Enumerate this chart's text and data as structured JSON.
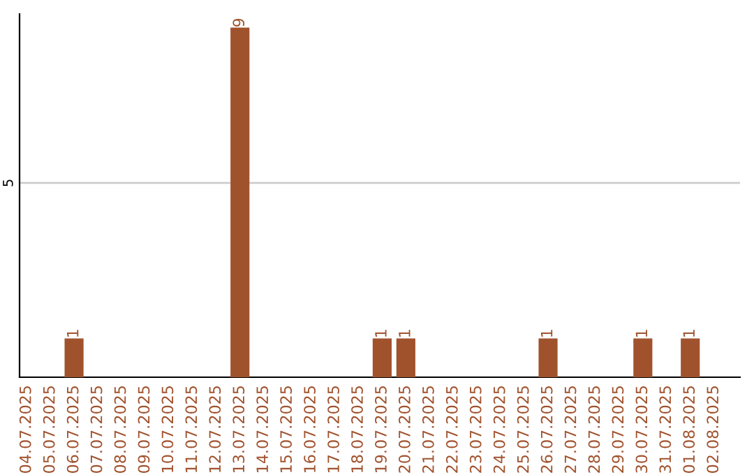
{
  "chart_data": {
    "type": "bar",
    "categories": [
      "04.07.2025",
      "05.07.2025",
      "06.07.2025",
      "07.07.2025",
      "08.07.2025",
      "09.07.2025",
      "10.07.2025",
      "11.07.2025",
      "12.07.2025",
      "13.07.2025",
      "14.07.2025",
      "15.07.2025",
      "16.07.2025",
      "17.07.2025",
      "18.07.2025",
      "19.07.2025",
      "20.07.2025",
      "21.07.2025",
      "22.07.2025",
      "23.07.2025",
      "24.07.2025",
      "25.07.2025",
      "26.07.2025",
      "27.07.2025",
      "28.07.2025",
      "29.07.2025",
      "30.07.2025",
      "31.07.2025",
      "01.08.2025",
      "02.08.2025"
    ],
    "values": [
      0,
      0,
      1,
      0,
      0,
      0,
      0,
      0,
      0,
      9,
      0,
      0,
      0,
      0,
      0,
      1,
      1,
      0,
      0,
      0,
      0,
      0,
      1,
      0,
      0,
      0,
      1,
      0,
      1,
      0
    ],
    "value_labels": [
      null,
      null,
      "1",
      null,
      null,
      null,
      null,
      null,
      null,
      "9",
      null,
      null,
      null,
      null,
      null,
      "1",
      "1",
      null,
      null,
      null,
      null,
      null,
      "1",
      null,
      null,
      null,
      "1",
      null,
      "1",
      null
    ],
    "color": "#a0522d",
    "ylim": [
      0,
      9.35
    ],
    "yticks": [
      5
    ],
    "grid": "y",
    "legend": false
  }
}
